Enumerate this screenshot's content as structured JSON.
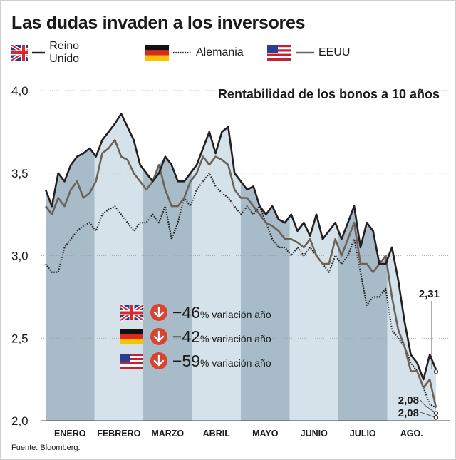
{
  "title": "Las dudas invaden a los inversores",
  "source": "Fuente: Bloomberg.",
  "legend": [
    {
      "name": "Reino Unido",
      "flag": "uk-flag-icon",
      "style": "solid",
      "color": "#231f20"
    },
    {
      "name": "Alemania",
      "flag": "germany-flag-icon",
      "style": "dotted",
      "color": "#231f20"
    },
    {
      "name": "EEUU",
      "flag": "usa-flag-icon",
      "style": "solid",
      "color": "#6b625a"
    }
  ],
  "annotations": {
    "subtitle": "Rentabilidad de los bonos a 10 años",
    "changes": [
      {
        "flag": "uk-flag-icon",
        "value": "−46",
        "unit": "% variación año"
      },
      {
        "flag": "germany-flag-icon",
        "value": "−42",
        "unit": "% variación año"
      },
      {
        "flag": "usa-flag-icon",
        "value": "−59",
        "unit": "% variación año"
      }
    ],
    "end_labels": [
      "2,31",
      "2,08",
      "2,08"
    ]
  },
  "colors": {
    "band_dark": "#a7bcc8",
    "band_light": "#d6e2e9",
    "uk": "#231f20",
    "de": "#231f20",
    "us": "#6b625a",
    "arrow": "#d9432f"
  },
  "chart_data": {
    "type": "line",
    "title": "Rentabilidad de los bonos a 10 años",
    "xlabel": "",
    "ylabel": "",
    "ylim": [
      2.0,
      4.0
    ],
    "yticks": [
      "2,0",
      "2,5",
      "3,0",
      "3,5",
      "4,0"
    ],
    "months": [
      "ENERO",
      "FEBRERO",
      "MARZO",
      "ABRIL",
      "MAYO",
      "JUNIO",
      "JULIO",
      "AGO."
    ],
    "grid": true,
    "series": [
      {
        "name": "Reino Unido",
        "values": [
          3.4,
          3.3,
          3.5,
          3.45,
          3.55,
          3.6,
          3.62,
          3.65,
          3.6,
          3.7,
          3.75,
          3.8,
          3.86,
          3.78,
          3.7,
          3.55,
          3.5,
          3.45,
          3.5,
          3.6,
          3.55,
          3.45,
          3.45,
          3.5,
          3.55,
          3.65,
          3.75,
          3.62,
          3.75,
          3.78,
          3.5,
          3.45,
          3.4,
          3.42,
          3.3,
          3.25,
          3.3,
          3.22,
          3.2,
          3.25,
          3.15,
          3.2,
          3.12,
          3.25,
          3.1,
          3.15,
          3.2,
          3.1,
          3.2,
          3.3,
          3.05,
          3.2,
          3.15,
          2.95,
          2.95,
          3.05,
          2.85,
          2.6,
          2.4,
          2.35,
          2.25,
          2.4,
          2.31
        ]
      },
      {
        "name": "Alemania",
        "values": [
          2.95,
          2.9,
          2.9,
          3.05,
          3.1,
          3.15,
          3.18,
          3.2,
          3.15,
          3.25,
          3.28,
          3.3,
          3.25,
          3.2,
          3.15,
          3.2,
          3.2,
          3.25,
          3.2,
          3.3,
          3.1,
          3.2,
          3.35,
          3.3,
          3.4,
          3.45,
          3.5,
          3.42,
          3.38,
          3.35,
          3.3,
          3.25,
          3.3,
          3.25,
          3.3,
          3.2,
          3.1,
          3.05,
          3.05,
          3.0,
          3.05,
          3.0,
          3.05,
          3.0,
          2.95,
          2.9,
          3.0,
          2.95,
          3.0,
          3.1,
          2.9,
          2.7,
          2.75,
          2.75,
          2.8,
          2.55,
          2.5,
          2.45,
          2.35,
          2.3,
          2.2,
          2.1,
          2.08
        ]
      },
      {
        "name": "EEUU",
        "values": [
          3.3,
          3.25,
          3.35,
          3.3,
          3.4,
          3.45,
          3.35,
          3.38,
          3.45,
          3.62,
          3.65,
          3.7,
          3.6,
          3.58,
          3.5,
          3.45,
          3.4,
          3.45,
          3.55,
          3.4,
          3.3,
          3.3,
          3.35,
          3.45,
          3.5,
          3.6,
          3.55,
          3.6,
          3.58,
          3.55,
          3.4,
          3.35,
          3.35,
          3.3,
          3.25,
          3.2,
          3.18,
          3.15,
          3.1,
          3.1,
          3.08,
          3.05,
          3.1,
          3.0,
          2.95,
          2.95,
          3.1,
          3.0,
          3.1,
          3.2,
          2.95,
          2.95,
          2.9,
          2.95,
          3.0,
          2.75,
          2.55,
          2.45,
          2.3,
          2.3,
          2.2,
          2.25,
          2.08
        ]
      }
    ]
  }
}
